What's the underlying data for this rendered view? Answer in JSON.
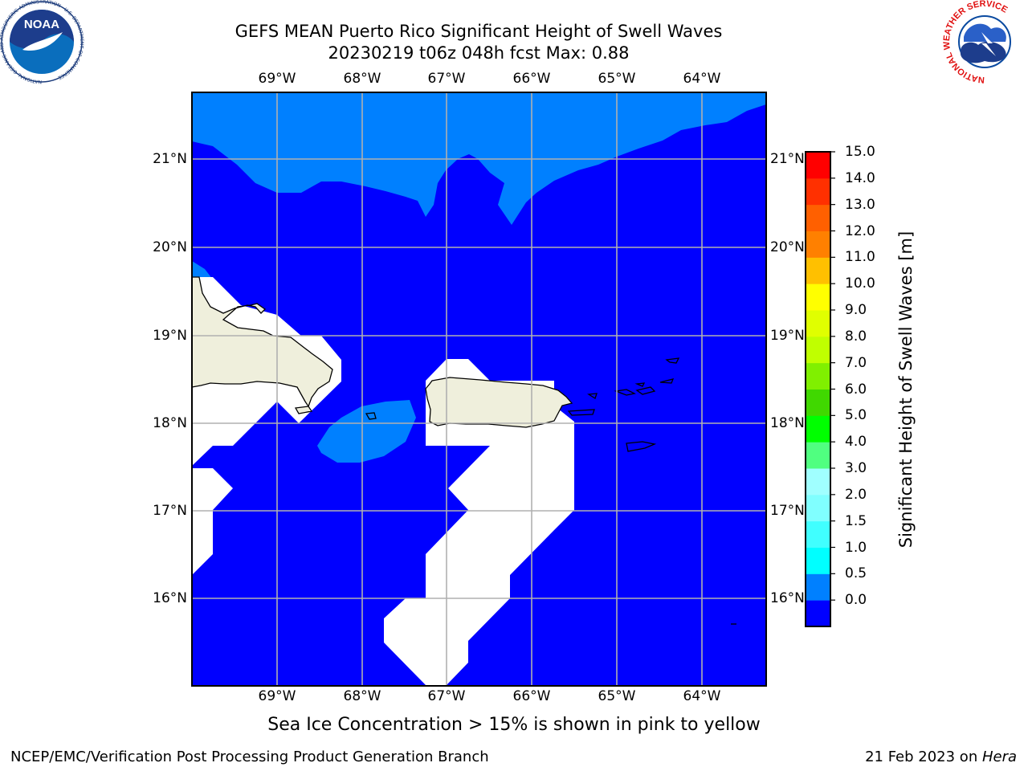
{
  "title_line1": "GEFS MEAN Puerto Rico Significant Height of Swell Waves",
  "title_line2": "20230219 t06z 048h fcst   Max: 0.88",
  "map": {
    "lon_ticks": [
      "69°W",
      "68°W",
      "67°W",
      "66°W",
      "65°W",
      "64°W"
    ],
    "lat_ticks": [
      "21°N",
      "20°N",
      "19°N",
      "18°N",
      "17°N",
      "16°N"
    ],
    "lon_range": [
      -70.0,
      -63.25
    ],
    "lat_range": [
      15.0,
      21.75
    ],
    "grid": true
  },
  "colorbar": {
    "label": "Significant Height of Swell Waves [m]",
    "ticks": [
      "15.0",
      "14.0",
      "13.0",
      "12.0",
      "11.0",
      "10.0",
      "9.0",
      "8.0",
      "7.0",
      "6.0",
      "5.0",
      "4.0",
      "3.0",
      "2.0",
      "1.5",
      "1.0",
      "0.5",
      "0.0"
    ],
    "colors": [
      "#0000ff",
      "#0080ff",
      "#00ffff",
      "#40ffff",
      "#80ffff",
      "#a0ffff",
      "#50ff80",
      "#00ff00",
      "#40d800",
      "#80f000",
      "#c0ff00",
      "#e0ff00",
      "#ffff00",
      "#ffc000",
      "#ff8000",
      "#ff6000",
      "#ff3000",
      "#ff0000"
    ]
  },
  "legend_colors": {
    "water_low": "#0000ff",
    "water_mid": "#0080ff",
    "land": "#efefdc",
    "missing": "#ffffff"
  },
  "note": "Sea Ice Concentration > 15% is shown in pink to yellow",
  "footer_left": "NCEP/EMC/Verification Post Processing Product Generation Branch",
  "footer_date": "21 Feb 2023 on ",
  "footer_host": "Hera",
  "logos": {
    "left": "NOAA",
    "left_ring": "NATIONAL OCEANIC AND ATMOSPHERIC ADMINISTRATION · U.S. DEPARTMENT OF COMMERCE",
    "right_ring": "NATIONAL WEATHER SERVICE"
  }
}
